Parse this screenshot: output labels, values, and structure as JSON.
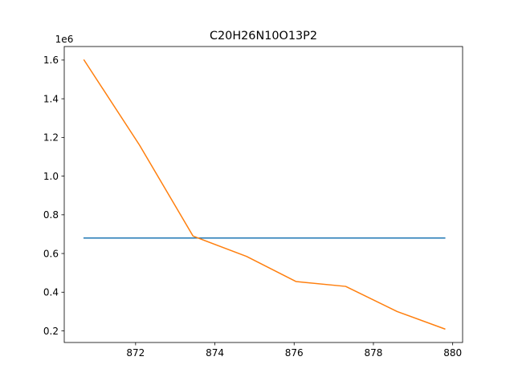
{
  "chart_data": {
    "type": "line",
    "title": "C20H26N10O13P2",
    "xlabel": "",
    "ylabel": "",
    "y_offset_label": "1e6",
    "xlim": [
      870.2,
      880.25
    ],
    "ylim": [
      140000,
      1670000
    ],
    "x_ticks": [
      872,
      874,
      876,
      878,
      880
    ],
    "x_tick_labels": [
      "872",
      "874",
      "876",
      "878",
      "880"
    ],
    "y_ticks": [
      200000,
      400000,
      600000,
      800000,
      1000000,
      1200000,
      1400000,
      1600000
    ],
    "y_tick_labels": [
      "0.2",
      "0.4",
      "0.6",
      "0.8",
      "1.0",
      "1.2",
      "1.4",
      "1.6"
    ],
    "grid": false,
    "series": [
      {
        "color": "#1f77b4",
        "x": [
          870.7,
          879.8
        ],
        "y": [
          680000,
          680000
        ]
      },
      {
        "color": "#ff7f0e",
        "x": [
          870.7,
          872.1,
          873.45,
          874.8,
          876.05,
          877.3,
          878.6,
          879.8
        ],
        "y": [
          1600000,
          1160000,
          690000,
          585000,
          455000,
          430000,
          300000,
          210000
        ]
      }
    ]
  }
}
